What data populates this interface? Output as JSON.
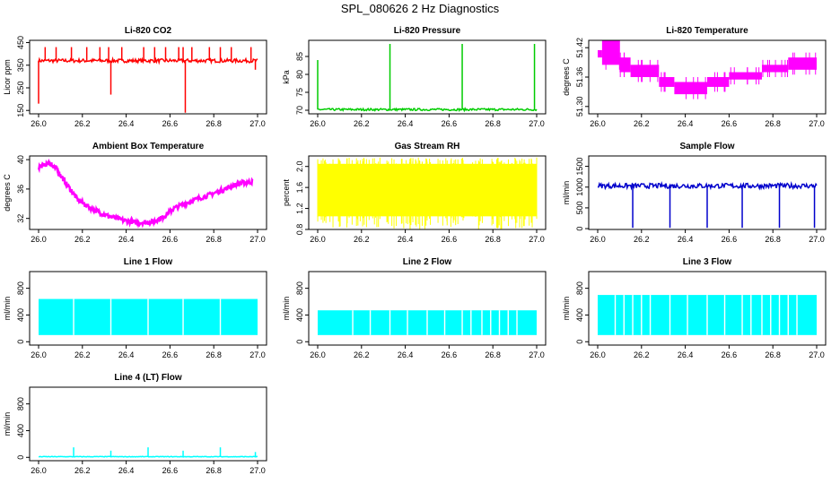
{
  "page": {
    "title": "SPL_080626  2 Hz Diagnostics"
  },
  "chart_data": [
    {
      "type": "line",
      "title": "Li-820 CO2",
      "xlabel": "",
      "ylabel": "Licor ppm",
      "xlim": [
        26.0,
        27.0
      ],
      "ylim": [
        135,
        460
      ],
      "xticks": [
        "26.0",
        "26.2",
        "26.4",
        "26.6",
        "26.8",
        "27.0"
      ],
      "yticks": [
        "150",
        "250",
        "350",
        "450"
      ],
      "ytick_values": [
        150,
        250,
        350,
        450
      ],
      "color": "#ff0000",
      "baseline": 370,
      "noise": 8,
      "spikes": [
        [
          26.0,
          180
        ],
        [
          26.03,
          430
        ],
        [
          26.08,
          430
        ],
        [
          26.15,
          430
        ],
        [
          26.22,
          430
        ],
        [
          26.28,
          430
        ],
        [
          26.32,
          430
        ],
        [
          26.33,
          220
        ],
        [
          26.38,
          430
        ],
        [
          26.48,
          430
        ],
        [
          26.53,
          430
        ],
        [
          26.58,
          430
        ],
        [
          26.64,
          430
        ],
        [
          26.66,
          430
        ],
        [
          26.67,
          140
        ],
        [
          26.7,
          430
        ],
        [
          26.78,
          430
        ],
        [
          26.83,
          430
        ],
        [
          26.88,
          430
        ],
        [
          26.97,
          430
        ],
        [
          26.99,
          330
        ]
      ],
      "grid": false
    },
    {
      "type": "line",
      "title": "Li-820 Pressure",
      "xlabel": "",
      "ylabel": "kPa",
      "xlim": [
        26.0,
        27.0
      ],
      "ylim": [
        69.0,
        89.5
      ],
      "xticks": [
        "26.0",
        "26.2",
        "26.4",
        "26.6",
        "26.8",
        "27.0"
      ],
      "yticks": [
        "70",
        "75",
        "80",
        "85"
      ],
      "ytick_values": [
        70,
        75,
        80,
        85
      ],
      "color": "#00cc00",
      "baseline": 70.2,
      "noise": 0.3,
      "spikes": [
        [
          26.0,
          84
        ],
        [
          26.33,
          88.5
        ],
        [
          26.66,
          88.5
        ],
        [
          26.99,
          88.5
        ]
      ],
      "grid": false
    },
    {
      "type": "line",
      "title": "Li-820 Temperature",
      "xlabel": "",
      "ylabel": "degrees C",
      "xlim": [
        26.0,
        27.0
      ],
      "ylim": [
        51.285,
        51.435
      ],
      "xticks": [
        "26.0",
        "26.2",
        "26.4",
        "26.6",
        "26.8",
        "27.0"
      ],
      "yticks": [
        "51.30",
        "51.36",
        "51.42"
      ],
      "ytick_values": [
        51.3,
        51.36,
        51.42
      ],
      "color": "#ff00ff",
      "steps": [
        [
          26.0,
          51.4,
          51.415
        ],
        [
          26.02,
          51.385,
          51.435
        ],
        [
          26.1,
          51.37,
          51.4
        ],
        [
          26.15,
          51.36,
          51.385
        ],
        [
          26.28,
          51.34,
          51.36
        ],
        [
          26.35,
          51.325,
          51.35
        ],
        [
          26.5,
          51.34,
          51.36
        ],
        [
          26.6,
          51.355,
          51.37
        ],
        [
          26.75,
          51.37,
          51.385
        ],
        [
          26.87,
          51.375,
          51.4
        ],
        [
          27.0,
          51.375,
          51.4
        ]
      ],
      "grid": false
    },
    {
      "type": "line",
      "title": "Ambient Box Temperature",
      "xlabel": "",
      "ylabel": "degrees C",
      "xlim": [
        26.0,
        27.0
      ],
      "ylim": [
        30.5,
        40.5
      ],
      "xticks": [
        "26.0",
        "26.2",
        "26.4",
        "26.6",
        "26.8",
        "27.0"
      ],
      "yticks": [
        "32",
        "36",
        "40"
      ],
      "ytick_values": [
        32,
        36,
        40
      ],
      "color": "#ff00ff",
      "x": [
        26.0,
        26.05,
        26.08,
        26.12,
        26.18,
        26.25,
        26.3,
        26.38,
        26.45,
        26.52,
        26.57,
        26.62,
        26.7,
        26.78,
        26.85,
        26.92,
        26.98
      ],
      "y": [
        39.0,
        39.5,
        38.8,
        37.0,
        34.5,
        33.2,
        32.5,
        31.8,
        31.4,
        31.5,
        32.2,
        33.4,
        34.4,
        35.2,
        36.0,
        36.8,
        37.0
      ],
      "grid": false
    },
    {
      "type": "line",
      "title": "Gas Stream RH",
      "xlabel": "",
      "ylabel": "percent",
      "xlim": [
        26.0,
        27.0
      ],
      "ylim": [
        0.8,
        2.2
      ],
      "xticks": [
        "26.0",
        "26.2",
        "26.4",
        "26.6",
        "26.8",
        "27.0"
      ],
      "yticks": [
        "0.8",
        "1.2",
        "1.6",
        "2.0"
      ],
      "ytick_values": [
        0.8,
        1.2,
        1.6,
        2.0
      ],
      "color": "#ffff00",
      "band": [
        1.05,
        2.05
      ],
      "grid": false
    },
    {
      "type": "line",
      "title": "Sample Flow",
      "xlabel": "",
      "ylabel": "ml/min",
      "xlim": [
        26.0,
        27.0
      ],
      "ylim": [
        -20,
        1750
      ],
      "xticks": [
        "26.0",
        "26.2",
        "26.4",
        "26.6",
        "26.8",
        "27.0"
      ],
      "yticks": [
        "0",
        "500",
        "1000",
        "1500"
      ],
      "ytick_values": [
        0,
        500,
        1000,
        1500
      ],
      "color": "#0000cc",
      "baseline": 1030,
      "noise": 60,
      "spikes": [
        [
          26.16,
          20
        ],
        [
          26.33,
          20
        ],
        [
          26.5,
          20
        ],
        [
          26.66,
          20
        ],
        [
          26.83,
          20
        ],
        [
          26.99,
          20
        ]
      ],
      "grid": false
    },
    {
      "type": "line",
      "title": "Line 1 Flow",
      "xlabel": "",
      "ylabel": "ml/min",
      "xlim": [
        26.0,
        27.0
      ],
      "ylim": [
        -50,
        1050
      ],
      "xticks": [
        "26.0",
        "26.2",
        "26.4",
        "26.6",
        "26.8",
        "27.0"
      ],
      "yticks": [
        "0",
        "400",
        "800"
      ],
      "ytick_values": [
        0,
        400,
        800
      ],
      "color": "#00ffff",
      "band": [
        100,
        640
      ],
      "gaps": [
        26.16,
        26.33,
        26.5,
        26.66,
        26.83
      ],
      "grid": false
    },
    {
      "type": "line",
      "title": "Line 2 Flow",
      "xlabel": "",
      "ylabel": "ml/min",
      "xlim": [
        26.0,
        27.0
      ],
      "ylim": [
        -50,
        1050
      ],
      "xticks": [
        "26.0",
        "26.2",
        "26.4",
        "26.6",
        "26.8",
        "27.0"
      ],
      "yticks": [
        "0",
        "400",
        "800"
      ],
      "ytick_values": [
        0,
        400,
        800
      ],
      "color": "#00ffff",
      "band": [
        100,
        470
      ],
      "gaps": [
        26.16,
        26.24,
        26.33,
        26.41,
        26.5,
        26.58,
        26.66,
        26.7,
        26.75,
        26.79,
        26.83,
        26.87,
        26.91
      ],
      "grid": false
    },
    {
      "type": "line",
      "title": "Line 3 Flow",
      "xlabel": "",
      "ylabel": "ml/min",
      "xlim": [
        26.0,
        27.0
      ],
      "ylim": [
        -50,
        1050
      ],
      "xticks": [
        "26.0",
        "26.2",
        "26.4",
        "26.6",
        "26.8",
        "27.0"
      ],
      "yticks": [
        "0",
        "400",
        "800"
      ],
      "ytick_values": [
        0,
        400,
        800
      ],
      "color": "#00ffff",
      "band": [
        100,
        700
      ],
      "gaps": [
        26.08,
        26.12,
        26.16,
        26.2,
        26.24,
        26.33,
        26.41,
        26.5,
        26.58,
        26.66,
        26.7,
        26.75,
        26.79,
        26.83,
        26.87,
        26.91
      ],
      "grid": false
    },
    {
      "type": "line",
      "title": "Line 4 (LT) Flow",
      "xlabel": "",
      "ylabel": "ml/min",
      "xlim": [
        26.0,
        27.0
      ],
      "ylim": [
        -50,
        1050
      ],
      "xticks": [
        "26.0",
        "26.2",
        "26.4",
        "26.6",
        "26.8",
        "27.0"
      ],
      "yticks": [
        "0",
        "400",
        "800"
      ],
      "ytick_values": [
        0,
        400,
        800
      ],
      "color": "#00ffff",
      "baseline": 10,
      "noise": 4,
      "spikes": [
        [
          26.16,
          150
        ],
        [
          26.33,
          100
        ],
        [
          26.5,
          150
        ],
        [
          26.66,
          100
        ],
        [
          26.83,
          150
        ],
        [
          26.99,
          80
        ]
      ],
      "grid": false
    }
  ]
}
